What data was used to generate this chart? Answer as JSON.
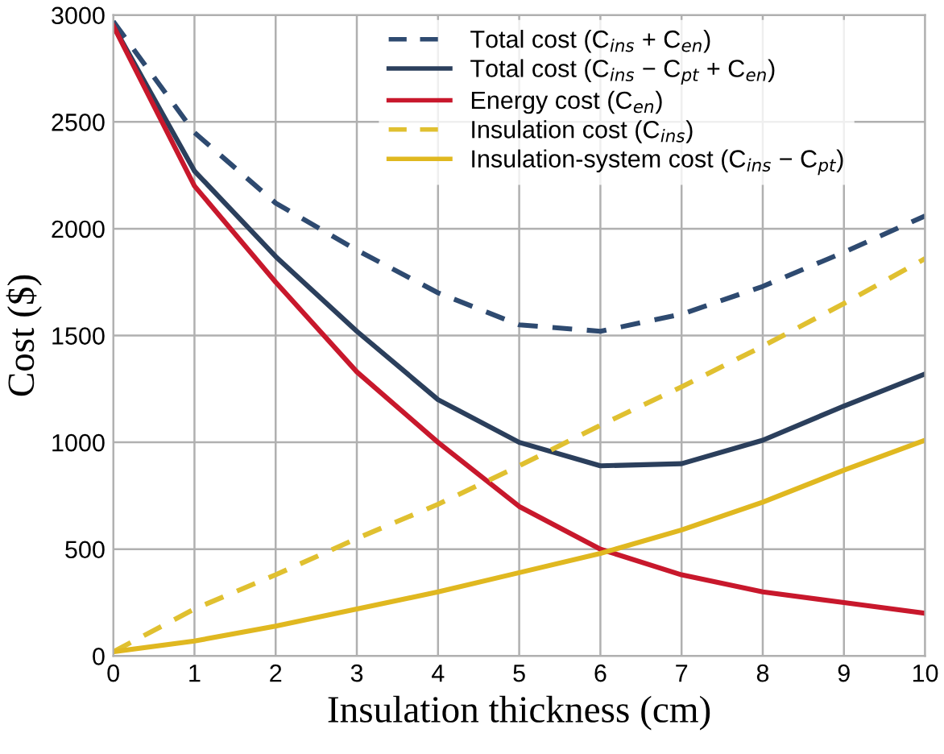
{
  "chart_data": {
    "type": "line",
    "xlabel": "Insulation thickness (cm)",
    "ylabel": "Cost ($)",
    "x": [
      0,
      1,
      2,
      3,
      4,
      5,
      6,
      7,
      8,
      9,
      10
    ],
    "xlim": [
      0,
      10
    ],
    "xticks": [
      0,
      1,
      2,
      3,
      4,
      5,
      6,
      7,
      8,
      9,
      10
    ],
    "ylim": [
      0,
      3000
    ],
    "yticks": [
      0,
      500,
      1000,
      1500,
      2000,
      2500,
      3000
    ],
    "grid": true,
    "legend": "top",
    "marker": "none",
    "series": [
      {
        "name": "Total cost (C$_{ins}$ + C$_{en}$)",
        "color": "#2e4a70",
        "line_style": "dashed",
        "values": [
          2970,
          2450,
          2120,
          1900,
          1700,
          1550,
          1520,
          1600,
          1730,
          1890,
          2060
        ]
      },
      {
        "name": "Total cost (C$_{ins}$ − C$_{pt}$ + C$_{en}$)",
        "color": "#2b3f5c",
        "line_style": "solid",
        "values": [
          2950,
          2270,
          1870,
          1520,
          1200,
          1000,
          890,
          900,
          1010,
          1170,
          1320
        ]
      },
      {
        "name": "Energy cost (C$_{en}$)",
        "color": "#c8182c",
        "line_style": "solid",
        "values": [
          2950,
          2200,
          1750,
          1330,
          1000,
          700,
          500,
          380,
          300,
          250,
          200
        ]
      },
      {
        "name": "Insulation cost (C$_{ins}$)",
        "color": "#e0c030",
        "line_style": "dashed",
        "values": [
          20,
          220,
          380,
          550,
          710,
          890,
          1080,
          1260,
          1450,
          1650,
          1860
        ]
      },
      {
        "name": "Insulation-system cost (C$_{ins}$ − C$_{pt}$)",
        "color": "#e0b820",
        "line_style": "solid",
        "values": [
          20,
          70,
          140,
          220,
          300,
          390,
          480,
          590,
          720,
          870,
          1010
        ]
      }
    ]
  }
}
